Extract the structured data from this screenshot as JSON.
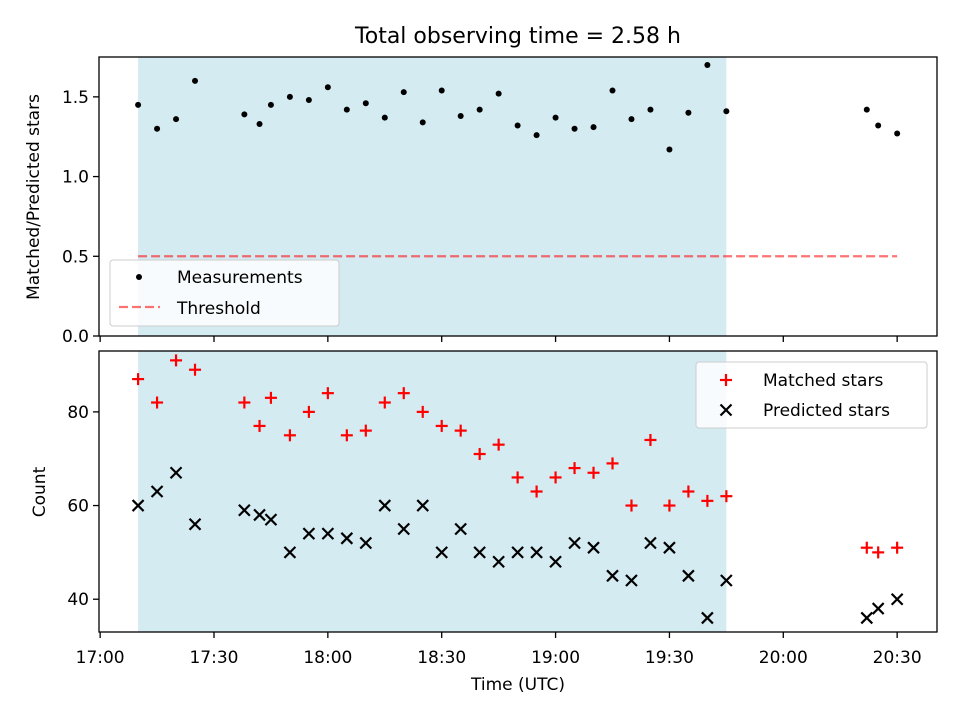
{
  "chart_data": [
    {
      "type": "scatter",
      "title": "Total observing time = 2.58 h",
      "xlabel": "",
      "ylabel": "Matched/Predicted stars",
      "ylim": [
        0,
        1.75
      ],
      "yticks": [
        "0.0",
        "0.5",
        "1.0",
        "1.5"
      ],
      "ytick_values": [
        0,
        0.5,
        1.0,
        1.5
      ],
      "x_range": [
        "17:00",
        "20:40"
      ],
      "shaded_span": [
        "17:10",
        "19:45"
      ],
      "colors": {
        "shade": "#add8e6",
        "points": "#000000",
        "threshold": "#ff0000"
      },
      "threshold": 0.5,
      "threshold_span": [
        "17:10",
        "20:30"
      ],
      "legend": {
        "position": "lower left",
        "measurements_label": "Measurements",
        "threshold_label": "Threshold"
      },
      "points": [
        [
          "17:10",
          1.45
        ],
        [
          "17:15",
          1.3
        ],
        [
          "17:20",
          1.36
        ],
        [
          "17:25",
          1.6
        ],
        [
          "17:38",
          1.39
        ],
        [
          "17:42",
          1.33
        ],
        [
          "17:45",
          1.45
        ],
        [
          "17:50",
          1.5
        ],
        [
          "17:55",
          1.48
        ],
        [
          "18:00",
          1.56
        ],
        [
          "18:05",
          1.42
        ],
        [
          "18:10",
          1.46
        ],
        [
          "18:15",
          1.37
        ],
        [
          "18:20",
          1.53
        ],
        [
          "18:25",
          1.34
        ],
        [
          "18:30",
          1.54
        ],
        [
          "18:35",
          1.38
        ],
        [
          "18:40",
          1.42
        ],
        [
          "18:45",
          1.52
        ],
        [
          "18:50",
          1.32
        ],
        [
          "18:55",
          1.26
        ],
        [
          "19:00",
          1.37
        ],
        [
          "19:05",
          1.3
        ],
        [
          "19:10",
          1.31
        ],
        [
          "19:15",
          1.54
        ],
        [
          "19:20",
          1.36
        ],
        [
          "19:25",
          1.42
        ],
        [
          "19:30",
          1.17
        ],
        [
          "19:35",
          1.4
        ],
        [
          "19:40",
          1.7
        ],
        [
          "19:45",
          1.41
        ],
        [
          "20:22",
          1.42
        ],
        [
          "20:25",
          1.32
        ],
        [
          "20:30",
          1.27
        ]
      ]
    },
    {
      "type": "scatter",
      "title": "",
      "xlabel": "Time (UTC)",
      "ylabel": "Count",
      "ylim": [
        33,
        93
      ],
      "yticks": [
        "40",
        "60",
        "80"
      ],
      "ytick_values": [
        40,
        60,
        80
      ],
      "x_range": [
        "17:00",
        "20:40"
      ],
      "xticks": [
        "17:00",
        "17:30",
        "18:00",
        "18:30",
        "19:00",
        "19:30",
        "20:00",
        "20:30"
      ],
      "shaded_span": [
        "17:10",
        "19:45"
      ],
      "legend": {
        "position": "upper right"
      },
      "series": [
        {
          "name": "Matched stars",
          "marker": "plus",
          "color": "#ff0000",
          "points": [
            [
              "17:10",
              87
            ],
            [
              "17:15",
              82
            ],
            [
              "17:20",
              91
            ],
            [
              "17:25",
              89
            ],
            [
              "17:38",
              82
            ],
            [
              "17:42",
              77
            ],
            [
              "17:45",
              83
            ],
            [
              "17:50",
              75
            ],
            [
              "17:55",
              80
            ],
            [
              "18:00",
              84
            ],
            [
              "18:05",
              75
            ],
            [
              "18:10",
              76
            ],
            [
              "18:15",
              82
            ],
            [
              "18:20",
              84
            ],
            [
              "18:25",
              80
            ],
            [
              "18:30",
              77
            ],
            [
              "18:35",
              76
            ],
            [
              "18:40",
              71
            ],
            [
              "18:45",
              73
            ],
            [
              "18:50",
              66
            ],
            [
              "18:55",
              63
            ],
            [
              "19:00",
              66
            ],
            [
              "19:05",
              68
            ],
            [
              "19:10",
              67
            ],
            [
              "19:15",
              69
            ],
            [
              "19:20",
              60
            ],
            [
              "19:25",
              74
            ],
            [
              "19:30",
              60
            ],
            [
              "19:35",
              63
            ],
            [
              "19:40",
              61
            ],
            [
              "19:45",
              62
            ],
            [
              "20:22",
              51
            ],
            [
              "20:25",
              50
            ],
            [
              "20:30",
              51
            ]
          ]
        },
        {
          "name": "Predicted stars",
          "marker": "x",
          "color": "#000000",
          "points": [
            [
              "17:10",
              60
            ],
            [
              "17:15",
              63
            ],
            [
              "17:20",
              67
            ],
            [
              "17:25",
              56
            ],
            [
              "17:38",
              59
            ],
            [
              "17:42",
              58
            ],
            [
              "17:45",
              57
            ],
            [
              "17:50",
              50
            ],
            [
              "17:55",
              54
            ],
            [
              "18:00",
              54
            ],
            [
              "18:05",
              53
            ],
            [
              "18:10",
              52
            ],
            [
              "18:15",
              60
            ],
            [
              "18:20",
              55
            ],
            [
              "18:25",
              60
            ],
            [
              "18:30",
              50
            ],
            [
              "18:35",
              55
            ],
            [
              "18:40",
              50
            ],
            [
              "18:45",
              48
            ],
            [
              "18:50",
              50
            ],
            [
              "18:55",
              50
            ],
            [
              "19:00",
              48
            ],
            [
              "19:05",
              52
            ],
            [
              "19:10",
              51
            ],
            [
              "19:15",
              45
            ],
            [
              "19:20",
              44
            ],
            [
              "19:25",
              52
            ],
            [
              "19:30",
              51
            ],
            [
              "19:35",
              45
            ],
            [
              "19:40",
              36
            ],
            [
              "19:45",
              44
            ],
            [
              "20:22",
              36
            ],
            [
              "20:25",
              38
            ],
            [
              "20:30",
              40
            ]
          ]
        }
      ]
    }
  ]
}
